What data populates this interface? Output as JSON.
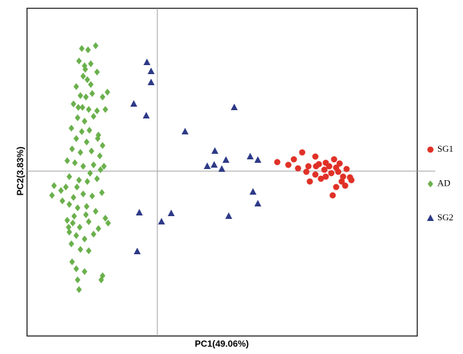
{
  "chart_data": {
    "type": "scatter",
    "x_label": "PC1(49.06%)",
    "y_label": "PC2(3.83%)",
    "xlim": [
      -1.88,
      3.75
    ],
    "ylim": [
      -2.38,
      2.35
    ],
    "zero_lines": true,
    "legend": "right",
    "series": [
      {
        "name": "SG1",
        "color": "#e03127",
        "marker": "circle",
        "x": [
          1.73,
          1.97,
          2.09,
          2.28,
          2.03,
          2.18,
          2.33,
          2.43,
          2.55,
          2.63,
          2.73,
          2.78,
          2.71,
          2.58,
          2.53,
          2.66,
          2.51,
          2.41,
          2.28,
          2.2,
          2.36,
          2.48,
          2.61,
          2.68,
          2.8,
          2.15,
          1.89,
          2.29,
          2.58,
          2.43
        ],
        "y": [
          0.13,
          0.17,
          0.27,
          0.21,
          0.04,
          0.07,
          0.1,
          0.12,
          0.17,
          0.11,
          0.03,
          -0.09,
          -0.21,
          -0.23,
          -0.35,
          -0.15,
          -0.03,
          0.02,
          -0.05,
          -0.15,
          -0.11,
          0.07,
          -0.01,
          -0.08,
          -0.13,
          -0.01,
          0.09,
          0.07,
          0.05,
          -0.08
        ]
      },
      {
        "name": "AD",
        "color": "#6ab04c",
        "marker": "diamond",
        "x": [
          -1.09,
          -1.0,
          -0.89,
          -1.13,
          -1.05,
          -0.96,
          -0.87,
          -1.07,
          -1.01,
          -1.17,
          -0.72,
          -1.11,
          -1.03,
          -0.94,
          -0.79,
          -1.21,
          -1.08,
          -0.99,
          -0.87,
          -0.75,
          -1.15,
          -1.05,
          -0.92,
          -1.24,
          -1.09,
          -0.98,
          -0.85,
          -1.17,
          -1.02,
          -0.79,
          -1.23,
          -1.11,
          -0.95,
          -0.83,
          -1.19,
          -1.07,
          -0.92,
          -0.77,
          -1.27,
          -1.13,
          -1.01,
          -0.87,
          -1.49,
          -1.39,
          -1.52,
          -1.32,
          -1.21,
          -1.07,
          -0.94,
          -0.8,
          -1.27,
          -1.15,
          -1.02,
          -0.89,
          -0.75,
          -1.3,
          -1.22,
          -1.12,
          -0.99,
          -0.85,
          -1.27,
          -1.17,
          -1.05,
          -0.92,
          -1.24,
          -1.11,
          -0.99,
          -1.23,
          -1.17,
          -1.05,
          -0.79,
          -0.81,
          -1.15,
          -1.13,
          -0.71,
          -1.37,
          -0.97,
          -1.2,
          -1.28,
          -1.03,
          -1.16,
          -0.86,
          -1.3,
          -0.96,
          -1.04,
          -0.82,
          -1.14
        ],
        "y": [
          1.77,
          1.75,
          1.81,
          1.59,
          1.52,
          1.55,
          1.43,
          1.37,
          1.32,
          1.22,
          1.14,
          1.09,
          1.07,
          1.12,
          1.07,
          0.97,
          0.92,
          0.89,
          0.87,
          0.89,
          0.77,
          0.72,
          0.79,
          0.62,
          0.57,
          0.59,
          0.52,
          0.47,
          0.42,
          0.37,
          0.32,
          0.27,
          0.29,
          0.22,
          0.12,
          0.07,
          0.09,
          0.07,
          -0.08,
          -0.13,
          -0.15,
          -0.11,
          -0.21,
          -0.28,
          -0.35,
          -0.23,
          -0.38,
          -0.33,
          -0.36,
          -0.31,
          -0.48,
          -0.53,
          -0.51,
          -0.58,
          -0.68,
          -0.71,
          -0.75,
          -0.81,
          -0.73,
          -0.83,
          -0.88,
          -0.93,
          -0.98,
          -0.91,
          -1.05,
          -1.13,
          -1.15,
          -1.31,
          -1.41,
          -1.45,
          -1.51,
          -1.57,
          -1.57,
          -1.71,
          -0.75,
          -0.43,
          -0.03,
          -0.65,
          -0.81,
          -0.63,
          -0.23,
          0.47,
          0.15,
          1.25,
          1.47,
          0.02,
          0.92
        ]
      },
      {
        "name": "SG2",
        "color": "#2e3a87",
        "marker": "triangle",
        "x": [
          -0.15,
          -0.09,
          -0.09,
          -0.34,
          -0.16,
          1.11,
          0.4,
          0.83,
          0.99,
          0.72,
          0.82,
          0.93,
          1.34,
          1.45,
          1.38,
          1.45,
          1.03,
          0.2,
          0.06,
          -0.26,
          -0.29
        ],
        "y": [
          1.57,
          1.44,
          1.28,
          0.97,
          0.8,
          0.92,
          0.57,
          0.29,
          0.16,
          0.07,
          0.09,
          0.03,
          0.21,
          0.16,
          -0.3,
          -0.47,
          -0.65,
          -0.61,
          -0.73,
          -0.6,
          -1.16
        ]
      }
    ]
  }
}
